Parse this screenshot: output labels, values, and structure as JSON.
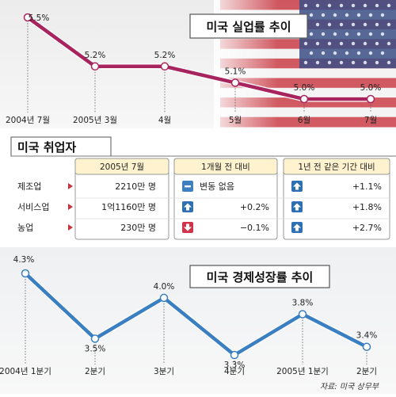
{
  "chart_data": [
    {
      "type": "line",
      "title": "미국 실업률 추이",
      "categories": [
        "2004년 7월",
        "2005년 3월",
        "4월",
        "5월",
        "6월",
        "7월"
      ],
      "values": [
        5.5,
        5.2,
        5.2,
        5.1,
        5.0,
        5.0
      ],
      "value_labels": [
        "5.5%",
        "5.2%",
        "5.2%",
        "5.1%",
        "5.0%",
        "5.0%"
      ],
      "color": "#a8245e"
    },
    {
      "type": "table",
      "title": "미국 취업자",
      "columns": [
        "2005년 7월",
        "1개월 전 대비",
        "1년 전 같은 기간 대비"
      ],
      "rows": [
        {
          "label": "제조업",
          "value": "2210만 명",
          "month": "변동 없음",
          "month_icon": "minus",
          "year": "+1.1%",
          "year_icon": "up"
        },
        {
          "label": "서비스업",
          "value": "1억1160만 명",
          "month": "+0.2%",
          "month_icon": "up",
          "year": "+1.8%",
          "year_icon": "up"
        },
        {
          "label": "농업",
          "value": "230만 명",
          "month": "−0.1%",
          "month_icon": "down",
          "year": "+2.7%",
          "year_icon": "up"
        }
      ]
    },
    {
      "type": "line",
      "title": "미국 경제성장률 추이",
      "categories": [
        "2004년 1분기",
        "2분기",
        "3분기",
        "4분기",
        "2005년 1분기",
        "2분기"
      ],
      "values": [
        4.3,
        3.5,
        4.0,
        3.3,
        3.8,
        3.4
      ],
      "value_labels": [
        "4.3%",
        "3.5%",
        "4.0%",
        "3.3%",
        "3.8%",
        "3.4%"
      ],
      "color": "#3a7fc1"
    }
  ],
  "source": "자료: 미국 상무부"
}
